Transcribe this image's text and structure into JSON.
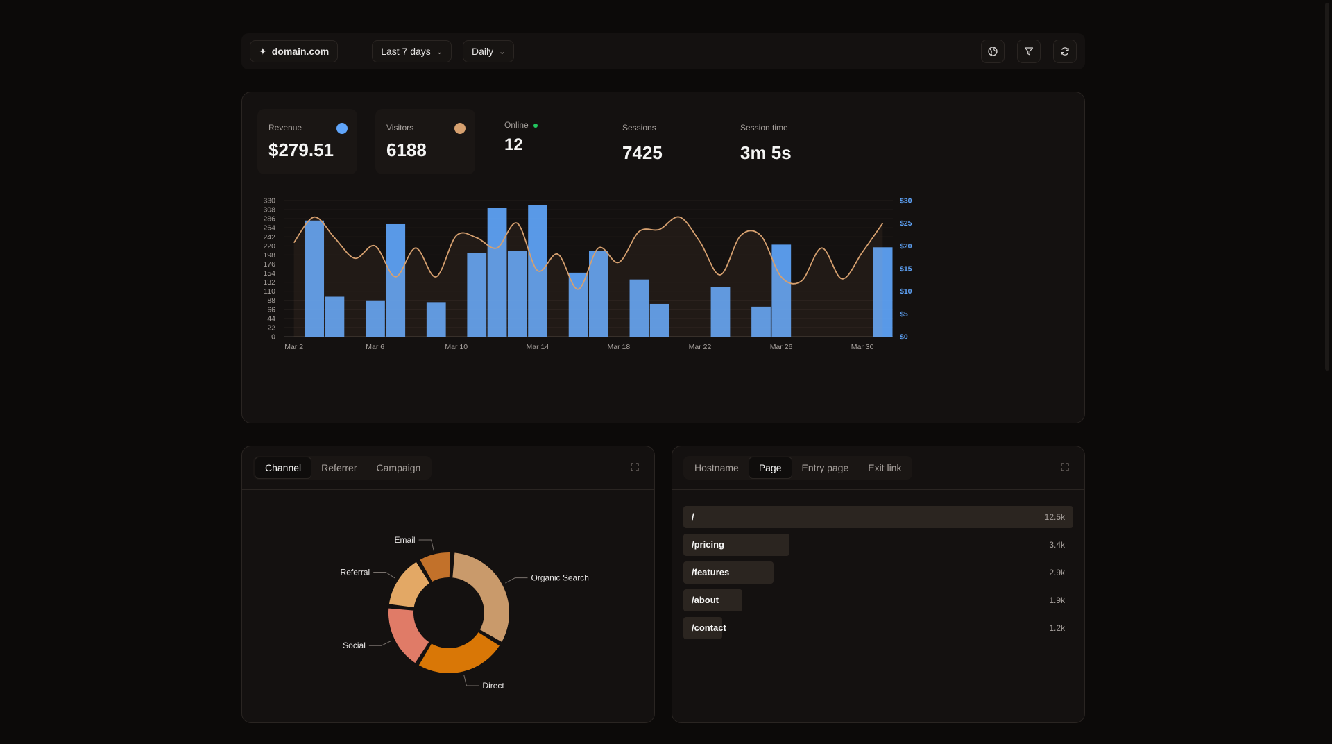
{
  "topbar": {
    "domain": "domain.com",
    "range": "Last 7 days",
    "interval": "Daily"
  },
  "stats": {
    "revenue_label": "Revenue",
    "revenue_value": "$279.51",
    "visitors_label": "Visitors",
    "visitors_value": "6188",
    "online_label": "Online",
    "online_value": "12",
    "sessions_label": "Sessions",
    "sessions_value": "7425",
    "session_time_label": "Session time",
    "session_time_value": "3m 5s"
  },
  "colors": {
    "revenue": "#60a5fa",
    "visitors": "#d6a06f",
    "online": "#22c55e",
    "channel_slices": [
      "#c99a6b",
      "#d97706",
      "#e07b67",
      "#e3a865",
      "#c2712a"
    ]
  },
  "chart_data": {
    "type": "bar",
    "x_ticks": [
      "Mar 2",
      "Mar 6",
      "Mar 10",
      "Mar 14",
      "Mar 18",
      "Mar 22",
      "Mar 26",
      "Mar 30"
    ],
    "left_ticks": [
      "0",
      "22",
      "44",
      "66",
      "88",
      "110",
      "132",
      "154",
      "176",
      "198",
      "220",
      "242",
      "264",
      "286",
      "308",
      "330"
    ],
    "right_ticks": [
      "$0",
      "$5",
      "$10",
      "$15",
      "$20",
      "$25",
      "$30"
    ],
    "ylim_left": [
      0,
      330
    ],
    "ylim_right": [
      0,
      30
    ],
    "series": [
      {
        "name": "Revenue",
        "axis": "right",
        "mark": "bar",
        "values": [
          0,
          25.6,
          8.8,
          0,
          8.0,
          24.8,
          0,
          7.6,
          0,
          18.4,
          28.4,
          18.9,
          29.0,
          0,
          14.1,
          18.9,
          0,
          12.6,
          7.2,
          0,
          0,
          11.0,
          0,
          6.6,
          20.3,
          0,
          0,
          0,
          0,
          19.7
        ]
      },
      {
        "name": "Visitors",
        "axis": "left",
        "mark": "line",
        "values": [
          228,
          290,
          240,
          190,
          220,
          145,
          215,
          145,
          245,
          240,
          215,
          275,
          160,
          200,
          115,
          215,
          180,
          255,
          260,
          290,
          230,
          150,
          245,
          245,
          145,
          135,
          215,
          140,
          205,
          275
        ]
      }
    ]
  },
  "channels": {
    "tabs": [
      "Channel",
      "Referrer",
      "Campaign"
    ],
    "active": 0,
    "slices": [
      {
        "label": "Organic Search",
        "value": 31
      },
      {
        "label": "Direct",
        "value": 24
      },
      {
        "label": "Social",
        "value": 17
      },
      {
        "label": "Referral",
        "value": 14
      },
      {
        "label": "Email",
        "value": 9
      }
    ]
  },
  "pages": {
    "tabs": [
      "Hostname",
      "Page",
      "Entry page",
      "Exit link"
    ],
    "active": 1,
    "rows": [
      {
        "path": "/",
        "count": "12.5k",
        "share": 1.0
      },
      {
        "path": "/pricing",
        "count": "3.4k",
        "share": 0.272
      },
      {
        "path": "/features",
        "count": "2.9k",
        "share": 0.232
      },
      {
        "path": "/about",
        "count": "1.9k",
        "share": 0.152
      },
      {
        "path": "/contact",
        "count": "1.2k",
        "share": 0.096
      }
    ]
  }
}
